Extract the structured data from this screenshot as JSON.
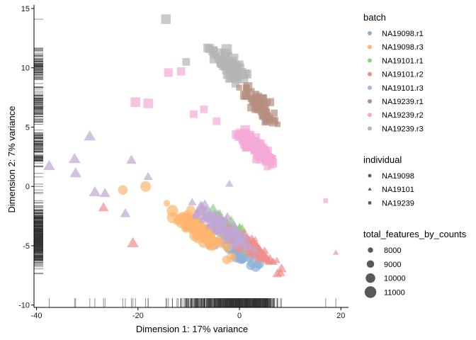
{
  "chart_data": {
    "type": "scatter",
    "title": "",
    "xlabel": "Dimension 1: 17% variance",
    "ylabel": "Dimension 2: 7% variance",
    "xlim": [
      -40.5,
      21.5
    ],
    "ylim": [
      -10.2,
      15.3
    ],
    "xticks": [
      -40,
      -20,
      0,
      20
    ],
    "yticks": [
      -10,
      -5,
      0,
      5,
      10,
      15
    ],
    "grid": false,
    "rug": true,
    "legends": [
      {
        "title": "batch",
        "kind": "color",
        "entries": [
          {
            "label": "NA19098.r1",
            "color": "#8fb0d8"
          },
          {
            "label": "NA19098.r3",
            "color": "#fdb56e"
          },
          {
            "label": "NA19101.r1",
            "color": "#8fcf84"
          },
          {
            "label": "NA19101.r2",
            "color": "#ee8f8b"
          },
          {
            "label": "NA19101.r3",
            "color": "#bfa7d3"
          },
          {
            "label": "NA19239.r1",
            "color": "#b58e80"
          },
          {
            "label": "NA19239.r2",
            "color": "#f3aad5"
          },
          {
            "label": "NA19239.r3",
            "color": "#b3b3b3"
          }
        ]
      },
      {
        "title": "individual",
        "kind": "shape",
        "entries": [
          {
            "label": "NA19098",
            "shape": "circle"
          },
          {
            "label": "NA19101",
            "shape": "triangle"
          },
          {
            "label": "NA19239",
            "shape": "square"
          }
        ]
      },
      {
        "title": "total_features_by_counts",
        "kind": "size",
        "entries": [
          {
            "label": "8000",
            "value": 8000
          },
          {
            "label": "9000",
            "value": 9000
          },
          {
            "label": "10000",
            "value": 10000
          },
          {
            "label": "11000",
            "value": 11000
          }
        ]
      }
    ],
    "legend_position": "right",
    "clusters": [
      {
        "batch": "NA19239.r3",
        "shape": "square",
        "center": [
          -2,
          10.2
        ],
        "spread": [
          5,
          1.6
        ],
        "slope": -0.35,
        "n": 70,
        "size_range": [
          8500,
          11000
        ]
      },
      {
        "batch": "NA19239.r1",
        "shape": "square",
        "center": [
          4,
          6.8
        ],
        "spread": [
          5,
          1.5
        ],
        "slope": -0.38,
        "n": 70,
        "size_range": [
          8000,
          10500
        ]
      },
      {
        "batch": "NA19239.r2",
        "shape": "square",
        "center": [
          3,
          3.3
        ],
        "spread": [
          6,
          1.4
        ],
        "slope": -0.32,
        "n": 80,
        "size_range": [
          8500,
          11000
        ]
      },
      {
        "batch": "NA19098.r1",
        "shape": "circle",
        "center": [
          -1,
          -5.2
        ],
        "spread": [
          7,
          1.3
        ],
        "slope": -0.28,
        "n": 60,
        "size_range": [
          8500,
          11000
        ]
      },
      {
        "batch": "NA19098.r3",
        "shape": "circle",
        "center": [
          -8,
          -3.6
        ],
        "spread": [
          8,
          1.4
        ],
        "slope": -0.28,
        "n": 80,
        "size_range": [
          8500,
          11000
        ]
      },
      {
        "batch": "NA19101.r1",
        "shape": "triangle",
        "center": [
          -1,
          -3.8
        ],
        "spread": [
          8,
          1.4
        ],
        "slope": -0.3,
        "n": 70,
        "size_range": [
          8000,
          10500
        ]
      },
      {
        "batch": "NA19101.r2",
        "shape": "triangle",
        "center": [
          2,
          -5.0
        ],
        "spread": [
          8,
          1.4
        ],
        "slope": -0.3,
        "n": 90,
        "size_range": [
          8000,
          10500
        ]
      },
      {
        "batch": "NA19101.r3",
        "shape": "triangle",
        "center": [
          -4,
          -3.2
        ],
        "spread": [
          9,
          1.4
        ],
        "slope": -0.3,
        "n": 80,
        "size_range": [
          8500,
          11000
        ]
      }
    ],
    "outliers": [
      {
        "batch": "NA19101.r3",
        "shape": "triangle",
        "x": -37.5,
        "y": 1.7,
        "size": 10500
      },
      {
        "batch": "NA19101.r3",
        "shape": "triangle",
        "x": -29.5,
        "y": 4.2,
        "size": 10500
      },
      {
        "batch": "NA19101.r3",
        "shape": "triangle",
        "x": -32.5,
        "y": 2.3,
        "size": 10500
      },
      {
        "batch": "NA19101.r3",
        "shape": "triangle",
        "x": -32.3,
        "y": 1.1,
        "size": 10500
      },
      {
        "batch": "NA19101.r3",
        "shape": "triangle",
        "x": -21.3,
        "y": 2.2,
        "size": 10000
      },
      {
        "batch": "NA19101.r3",
        "shape": "triangle",
        "x": -18,
        "y": 0.8,
        "size": 9500
      },
      {
        "batch": "NA19101.r3",
        "shape": "triangle",
        "x": -28.5,
        "y": -0.5,
        "size": 10500
      },
      {
        "batch": "NA19101.r3",
        "shape": "triangle",
        "x": -26.5,
        "y": -0.6,
        "size": 10000
      },
      {
        "batch": "NA19101.r3",
        "shape": "triangle",
        "x": -22.5,
        "y": -2.3,
        "size": 10000
      },
      {
        "batch": "NA19101.r3",
        "shape": "triangle",
        "x": -2,
        "y": 0.2,
        "size": 9000
      },
      {
        "batch": "NA19101.r2",
        "shape": "triangle",
        "x": -21,
        "y": -4.8,
        "size": 10500
      },
      {
        "batch": "NA19101.r2",
        "shape": "triangle",
        "x": -26.8,
        "y": -1.8,
        "size": 10000
      },
      {
        "batch": "NA19098.r3",
        "shape": "circle",
        "x": -23,
        "y": -0.3,
        "size": 10000
      },
      {
        "batch": "NA19098.r3",
        "shape": "circle",
        "x": -18.5,
        "y": 0.0,
        "size": 10500
      },
      {
        "batch": "NA19239.r3",
        "shape": "square",
        "x": -14.5,
        "y": 14.1,
        "size": 10500
      },
      {
        "batch": "NA19239.r3",
        "shape": "square",
        "x": -10.5,
        "y": 10.5,
        "size": 9500
      },
      {
        "batch": "NA19239.r2",
        "shape": "square",
        "x": -20.5,
        "y": 7.1,
        "size": 10500
      },
      {
        "batch": "NA19239.r2",
        "shape": "square",
        "x": -18,
        "y": 7.0,
        "size": 10500
      },
      {
        "batch": "NA19239.r2",
        "shape": "square",
        "x": -14,
        "y": 9.6,
        "size": 10000
      },
      {
        "batch": "NA19239.r2",
        "shape": "square",
        "x": -11.5,
        "y": 9.7,
        "size": 9800
      },
      {
        "batch": "NA19239.r2",
        "shape": "square",
        "x": -9,
        "y": 6.1,
        "size": 9500
      },
      {
        "batch": "NA19239.r2",
        "shape": "square",
        "x": -7,
        "y": 6.5,
        "size": 9500
      },
      {
        "batch": "NA19239.r2",
        "shape": "square",
        "x": -4.5,
        "y": 5.5,
        "size": 9500
      },
      {
        "batch": "NA19239.r2",
        "shape": "square",
        "x": 17,
        "y": -1.2,
        "size": 8000
      },
      {
        "batch": "NA19101.r2",
        "shape": "triangle",
        "x": 19,
        "y": -5.6,
        "size": 8000
      }
    ]
  }
}
